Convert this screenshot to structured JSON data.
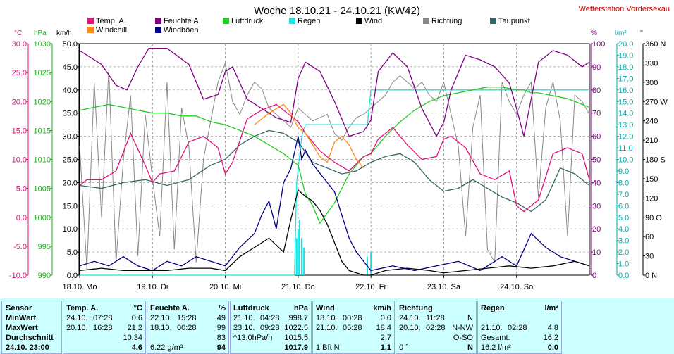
{
  "title": "Woche 18.10.21 - 24.10.21 (KW42)",
  "station": "Wetterstation Vordersexau",
  "colors": {
    "temp": "#e0107a",
    "feuchte": "#800080",
    "luftdruck": "#22cc22",
    "regen": "#22e0e0",
    "wind": "#000000",
    "richtung": "#888888",
    "taupunkt": "#336666",
    "windchill": "#ff8c1a",
    "windboeen": "#000080",
    "ylab_temp": "#e0107a",
    "ylab_hpa": "#22aa22",
    "ylab_kmh": "#000000",
    "ylab_pct": "#800080",
    "ylab_lm2": "#00aaaa",
    "ylab_dir": "#000000"
  },
  "legend": [
    {
      "key": "temp",
      "label": "Temp. A."
    },
    {
      "key": "feuchte",
      "label": "Feuchte A."
    },
    {
      "key": "luftdruck",
      "label": "Luftdruck"
    },
    {
      "key": "regen",
      "label": "Regen"
    },
    {
      "key": "wind",
      "label": "Wind"
    },
    {
      "key": "richtung",
      "label": "Richtung"
    },
    {
      "key": "taupunkt",
      "label": "Taupunkt"
    },
    {
      "key": "windchill",
      "label": "Windchill"
    },
    {
      "key": "windboeen",
      "label": "Windböen"
    }
  ],
  "axis_units": {
    "temp": "°C",
    "hpa": "hPa",
    "kmh": "km/h",
    "pct": "%",
    "lm2": "l/m²",
    "dir": "°"
  },
  "chart_data": {
    "type": "line",
    "x_unit": "days since 18.10. 00:00",
    "xlim": [
      0,
      7
    ],
    "x_ticks": [
      {
        "pos": 0,
        "label": "18.10. Mo"
      },
      {
        "pos": 1,
        "label": "19.10. Di"
      },
      {
        "pos": 2,
        "label": "20.10. Mi"
      },
      {
        "pos": 3,
        "label": "21.10. Do"
      },
      {
        "pos": 4,
        "label": "22.10. Fr"
      },
      {
        "pos": 5,
        "label": "23.10. Sa"
      },
      {
        "pos": 6,
        "label": "24.10. So"
      }
    ],
    "axes": {
      "temp": {
        "range": [
          -10,
          30
        ],
        "ticks": [
          "30.0",
          "25.0",
          "20.0",
          "15.0",
          "10.0",
          "5.0",
          "0.0",
          "-5.0",
          "-10.0"
        ]
      },
      "hpa": {
        "range": [
          990,
          1030
        ],
        "ticks": [
          "1030",
          "1025",
          "1020",
          "1015",
          "1010",
          "1005",
          "1000",
          "995",
          "990"
        ]
      },
      "kmh": {
        "range": [
          0,
          50
        ],
        "ticks": [
          "50.0",
          "45.0",
          "40.0",
          "35.0",
          "30.0",
          "25.0",
          "20.0",
          "15.0",
          "10.0",
          "5.0",
          "0.0"
        ]
      },
      "pct": {
        "range": [
          0,
          100
        ],
        "ticks": [
          "100",
          "90",
          "80",
          "70",
          "60",
          "50",
          "40",
          "30",
          "20",
          "10",
          "0"
        ]
      },
      "lm2": {
        "range": [
          0,
          20
        ],
        "ticks": [
          "20.0",
          "19.0",
          "18.0",
          "17.0",
          "16.0",
          "15.0",
          "14.0",
          "13.0",
          "12.0",
          "11.0",
          "10.0",
          "9.0",
          "8.0",
          "7.0",
          "6.0",
          "5.0",
          "4.0",
          "3.0",
          "2.0",
          "1.0",
          "0.0"
        ]
      },
      "dir": {
        "range": [
          0,
          360
        ],
        "ticks": [
          "360 N",
          "330",
          "300",
          "270 W",
          "240",
          "210",
          "180 S",
          "150",
          "120",
          "90 O",
          "60",
          "30",
          "0 N"
        ]
      }
    },
    "series": [
      {
        "name": "Temp. A.",
        "key": "temp",
        "axis": "temp",
        "x": [
          0,
          0.1,
          0.3,
          0.5,
          0.7,
          0.9,
          1.0,
          1.1,
          1.3,
          1.5,
          1.7,
          1.9,
          2.0,
          2.1,
          2.3,
          2.5,
          2.7,
          2.9,
          3.0,
          3.1,
          3.3,
          3.5,
          3.7,
          3.9,
          4.0,
          4.1,
          4.3,
          4.5,
          4.7,
          4.9,
          5.0,
          5.1,
          5.3,
          5.5,
          5.7,
          5.9,
          6.0,
          6.1,
          6.3,
          6.5,
          6.7,
          6.9,
          7.0
        ],
        "y": [
          5.5,
          6.5,
          6.5,
          8.0,
          14.5,
          9.0,
          6.0,
          7.5,
          8.0,
          13.0,
          14.0,
          12.0,
          7.5,
          9.5,
          17.0,
          18.5,
          19.5,
          17.5,
          16.5,
          14.5,
          11.5,
          9.5,
          8.0,
          10.5,
          11.0,
          13.5,
          15.5,
          12.5,
          10.0,
          10.5,
          13.5,
          14.0,
          12.0,
          7.5,
          6.5,
          8.0,
          2.0,
          1.0,
          3.0,
          11.0,
          12.0,
          11.0,
          6.5
        ]
      },
      {
        "name": "Feuchte A.",
        "key": "feuchte",
        "axis": "pct",
        "x": [
          0,
          0.15,
          0.3,
          0.5,
          0.65,
          0.8,
          0.95,
          1.2,
          1.5,
          1.7,
          1.9,
          2.0,
          2.1,
          2.3,
          2.5,
          2.7,
          2.9,
          3.0,
          3.1,
          3.3,
          3.5,
          3.7,
          3.9,
          4.0,
          4.1,
          4.3,
          4.5,
          4.7,
          4.9,
          5.0,
          5.1,
          5.3,
          5.5,
          5.7,
          5.9,
          6.0,
          6.1,
          6.3,
          6.5,
          6.7,
          6.9,
          7.0
        ],
        "y": [
          97,
          94,
          91,
          82,
          80,
          90,
          98,
          98,
          91,
          76,
          78,
          88,
          90,
          76,
          72,
          68,
          66,
          85,
          92,
          88,
          75,
          60,
          62,
          67,
          88,
          96,
          90,
          72,
          60,
          66,
          80,
          95,
          93,
          90,
          83,
          72,
          60,
          92,
          97,
          95,
          90,
          92
        ]
      },
      {
        "name": "Luftdruck",
        "key": "luftdruck",
        "axis": "hpa",
        "x": [
          0,
          0.2,
          0.4,
          0.6,
          0.8,
          1.0,
          1.2,
          1.4,
          1.6,
          1.8,
          2.0,
          2.2,
          2.4,
          2.6,
          2.8,
          3.0,
          3.1,
          3.2,
          3.3,
          3.5,
          3.7,
          3.9,
          4.0,
          4.2,
          4.4,
          4.6,
          4.8,
          5.0,
          5.2,
          5.4,
          5.6,
          5.8,
          6.0,
          6.1,
          6.2,
          6.3,
          6.5,
          6.7,
          6.9,
          7.0
        ],
        "y": [
          1018.5,
          1019.0,
          1019.5,
          1019.0,
          1018.5,
          1018.0,
          1018.0,
          1017.5,
          1017.5,
          1016.5,
          1016.0,
          1015.0,
          1014.0,
          1012.5,
          1011.0,
          1009.0,
          1004.0,
          1002.0,
          999.0,
          1002.5,
          1007.5,
          1010.5,
          1011.0,
          1014.0,
          1016.5,
          1018.5,
          1020.0,
          1021.0,
          1021.5,
          1022.0,
          1022.5,
          1022.5,
          1022.0,
          1022.0,
          1021.5,
          1021.5,
          1021.0,
          1020.5,
          1019.5,
          1019.0
        ]
      },
      {
        "name": "Regen",
        "key": "regen",
        "axis": "lm2",
        "x": [
          0,
          2.95,
          2.98,
          3.05,
          3.1,
          3.3,
          3.5,
          3.7,
          3.9,
          3.95,
          4.0,
          4.05,
          4.1,
          4.2,
          4.5,
          5.0,
          6.0,
          7.0
        ],
        "y": [
          0,
          0,
          8.0,
          12.0,
          13.0,
          13.0,
          13.0,
          13.0,
          13.0,
          13.0,
          16.0,
          16.0,
          16.0,
          16.0,
          16.0,
          16.0,
          16.0,
          16.0
        ]
      },
      {
        "name": "Wind",
        "key": "wind",
        "axis": "kmh",
        "x": [
          0,
          0.3,
          0.6,
          0.9,
          1.2,
          1.5,
          1.8,
          2.0,
          2.2,
          2.4,
          2.6,
          2.8,
          2.9,
          3.0,
          3.1,
          3.2,
          3.3,
          3.4,
          3.5,
          3.6,
          3.7,
          3.8,
          3.9,
          4.0,
          4.2,
          4.5,
          4.8,
          5.0,
          5.3,
          5.6,
          5.9,
          6.2,
          6.5,
          6.8,
          7.0
        ],
        "y": [
          1,
          1.5,
          1,
          1,
          1,
          1.5,
          1.5,
          1,
          4,
          6,
          8,
          5,
          12,
          18.4,
          17,
          16,
          14,
          11,
          7,
          3,
          1,
          0.5,
          0,
          0,
          1,
          1.5,
          1,
          0.5,
          1,
          1.5,
          2,
          1.5,
          2,
          3,
          2
        ]
      },
      {
        "name": "Richtung",
        "key": "richtung",
        "axis": "dir",
        "x": [
          0,
          0.1,
          0.2,
          0.3,
          0.4,
          0.5,
          0.6,
          0.7,
          0.8,
          0.9,
          1.0,
          1.1,
          1.2,
          1.3,
          1.4,
          1.5,
          1.6,
          1.7,
          1.8,
          1.9,
          2.0,
          2.1,
          2.2,
          2.3,
          2.4,
          2.5,
          2.6,
          2.7,
          2.8,
          2.9,
          3.0,
          3.1,
          3.2,
          3.3,
          3.4,
          3.5,
          3.6,
          3.7,
          3.8,
          3.9,
          4.0,
          4.1,
          4.2,
          4.3,
          4.4,
          4.5,
          4.6,
          4.7,
          4.8,
          4.9,
          5.0,
          5.1,
          5.2,
          5.3,
          5.4,
          5.5,
          5.6,
          5.7,
          5.8,
          5.9,
          6.0,
          6.1,
          6.2,
          6.3,
          6.4,
          6.5,
          6.6,
          6.7,
          6.8,
          6.9,
          7.0
        ],
        "y": [
          200,
          10,
          300,
          90,
          320,
          20,
          180,
          280,
          30,
          250,
          150,
          60,
          300,
          40,
          260,
          200,
          20,
          180,
          240,
          300,
          330,
          270,
          250,
          280,
          300,
          290,
          260,
          250,
          240,
          230,
          260,
          250,
          240,
          245,
          250,
          220,
          210,
          230,
          245,
          250,
          260,
          270,
          280,
          300,
          310,
          300,
          290,
          300,
          280,
          270,
          300,
          250,
          200,
          60,
          230,
          280,
          40,
          20,
          300,
          270,
          250,
          280,
          300,
          120,
          260,
          300,
          240,
          60,
          280,
          270,
          250
        ]
      },
      {
        "name": "Taupunkt",
        "key": "taupunkt",
        "axis": "temp",
        "x": [
          0,
          0.3,
          0.6,
          0.9,
          1.2,
          1.5,
          1.8,
          2.0,
          2.2,
          2.4,
          2.6,
          2.8,
          3.0,
          3.2,
          3.4,
          3.6,
          3.8,
          4.0,
          4.2,
          4.4,
          4.6,
          4.8,
          5.0,
          5.2,
          5.4,
          5.6,
          5.8,
          6.0,
          6.2,
          6.4,
          6.6,
          6.8,
          7.0
        ],
        "y": [
          5.5,
          5.0,
          6.0,
          6.5,
          5.5,
          6.5,
          9.0,
          10.0,
          12.5,
          14.0,
          15.0,
          14.5,
          13.0,
          9.5,
          8.5,
          7.5,
          8.0,
          9.5,
          10.5,
          11.0,
          9.5,
          6.5,
          4.5,
          5.0,
          6.5,
          5.0,
          3.5,
          2.5,
          1.0,
          3.0,
          8.5,
          7.5,
          5.5
        ]
      },
      {
        "name": "Windchill",
        "key": "windchill",
        "axis": "temp",
        "x": [
          2.4,
          2.6,
          2.8,
          2.9,
          3.0,
          3.1,
          3.2,
          3.3,
          3.4,
          3.5,
          3.6,
          3.7,
          3.8,
          3.9
        ],
        "y": [
          16.0,
          18.0,
          19.5,
          18.0,
          15.5,
          14.5,
          12.5,
          10.5,
          9.5,
          13.0,
          14.0,
          12.5,
          10.0,
          8.5
        ]
      },
      {
        "name": "Windböen",
        "key": "windboeen",
        "axis": "kmh",
        "x": [
          0,
          0.2,
          0.4,
          0.6,
          0.8,
          1.0,
          1.2,
          1.4,
          1.6,
          1.8,
          2.0,
          2.2,
          2.4,
          2.5,
          2.6,
          2.7,
          2.8,
          2.9,
          3.0,
          3.05,
          3.1,
          3.2,
          3.3,
          3.4,
          3.5,
          3.6,
          3.7,
          3.8,
          3.9,
          4.0,
          4.3,
          4.6,
          4.9,
          5.2,
          5.5,
          5.8,
          6.0,
          6.2,
          6.4,
          6.6,
          6.8,
          7.0
        ],
        "y": [
          2,
          3,
          2,
          4,
          2,
          1,
          3,
          2,
          4,
          3,
          2,
          6,
          9,
          13,
          16,
          10,
          20,
          23,
          30,
          25,
          27,
          24,
          22,
          20,
          18,
          13,
          8,
          5,
          3,
          1,
          2,
          1,
          2,
          3,
          1,
          4,
          2,
          9,
          6,
          4,
          3,
          2
        ]
      }
    ]
  },
  "stats": {
    "sensor": {
      "title": "Sensor",
      "rows": [
        "MinWert",
        "MaxWert",
        "Durchschnitt",
        "24.10. 23:00"
      ]
    },
    "panels": [
      {
        "title": "Temp. A.",
        "unit": "°C",
        "rows": [
          [
            "24.10.",
            "07:28",
            "0.6"
          ],
          [
            "20.10.",
            "16:28",
            "21.2"
          ],
          [
            "",
            "",
            "10.34"
          ],
          [
            "",
            "",
            "4.6"
          ]
        ]
      },
      {
        "title": "Feuchte A.",
        "unit": "%",
        "rows": [
          [
            "22.10.",
            "15:28",
            "49"
          ],
          [
            "18.10.",
            "00:28",
            "99"
          ],
          [
            "",
            "",
            "83"
          ],
          [
            "6.22 g/m³",
            "",
            "94"
          ]
        ]
      },
      {
        "title": "Luftdruck",
        "unit": "hPa",
        "rows": [
          [
            "21.10.",
            "04:28",
            "998.7"
          ],
          [
            "23.10.",
            "09:28",
            "1022.5"
          ],
          [
            "^13.0hPa/h",
            "",
            "1015.5"
          ],
          [
            "",
            "",
            "1017.9"
          ]
        ]
      },
      {
        "title": "Wind",
        "unit": "km/h",
        "rows": [
          [
            "18.10.",
            "00:28",
            "0.0"
          ],
          [
            "21.10.",
            "05:28",
            "18.4"
          ],
          [
            "",
            "",
            "2.7"
          ],
          [
            "1 Bft N",
            "",
            "1.1"
          ]
        ]
      },
      {
        "title": "Richtung",
        "unit": "",
        "rows": [
          [
            "24.10.",
            "11:28",
            "N"
          ],
          [
            "20.10.",
            "02:28",
            "N-NW"
          ],
          [
            "",
            "",
            "O-SO"
          ],
          [
            "0 °",
            "",
            "N"
          ]
        ]
      },
      {
        "title": "Regen",
        "unit": "l/m²",
        "rows": [
          [
            "",
            "",
            " "
          ],
          [
            "21.10.",
            "02:28",
            "4.8"
          ],
          [
            "Gesamt:",
            "",
            "16.2"
          ],
          [
            "16.2 l/m²",
            "",
            "0.0"
          ]
        ]
      }
    ]
  }
}
